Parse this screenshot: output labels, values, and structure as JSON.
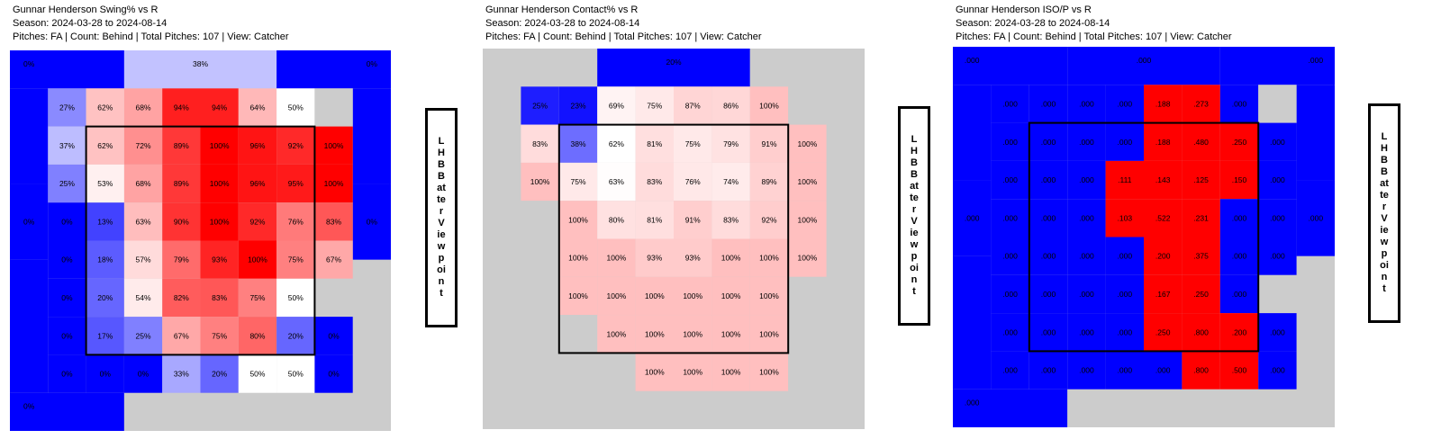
{
  "colors": {
    "low": "#0000ff",
    "mid": "#ffffff",
    "high": "#ff0000",
    "empty": "#cccccc",
    "zone": "#000000"
  },
  "viewpoint_label": "LHB Batter Viewpoint",
  "chart_data": [
    {
      "type": "heatmap",
      "metric": "Swing%",
      "title": "Gunnar Henderson Swing% vs R",
      "season": "Season: 2024-03-28 to 2024-08-14",
      "filters": "Pitches: FA | Count: Behind | Total Pitches: 107 | View: Catcher",
      "outer": {
        "top_left": "0%",
        "top_center": "38%",
        "top_right": "0%",
        "mid_left": "0%",
        "mid_right": "0%",
        "bottom_left": "0%",
        "bottom_center": null,
        "bottom_right": null
      },
      "rows": [
        [
          "27%",
          "62%",
          "68%",
          "94%",
          "94%",
          "64%",
          "50%",
          null
        ],
        [
          "37%",
          "62%",
          "72%",
          "89%",
          "100%",
          "96%",
          "92%",
          "100%"
        ],
        [
          "25%",
          "53%",
          "68%",
          "89%",
          "100%",
          "96%",
          "95%",
          "100%"
        ],
        [
          "0%",
          "13%",
          "63%",
          "90%",
          "100%",
          "92%",
          "76%",
          "83%"
        ],
        [
          "0%",
          "18%",
          "57%",
          "79%",
          "93%",
          "100%",
          "75%",
          "67%"
        ],
        [
          "0%",
          "20%",
          "54%",
          "82%",
          "83%",
          "75%",
          "50%",
          null
        ],
        [
          "0%",
          "17%",
          "25%",
          "67%",
          "75%",
          "80%",
          "20%",
          "0%"
        ],
        [
          "0%",
          "0%",
          "0%",
          "33%",
          "20%",
          "50%",
          "50%",
          "0%"
        ]
      ]
    },
    {
      "type": "heatmap",
      "metric": "Contact%",
      "title": "Gunnar Henderson Contact% vs R",
      "season": "Season: 2024-03-28 to 2024-08-14",
      "filters": "Pitches: FA | Count: Behind | Total Pitches: 107 | View: Catcher",
      "outer": {
        "top_left": null,
        "top_center": "20%",
        "top_right": null,
        "mid_left": null,
        "mid_right": null,
        "bottom_left": null,
        "bottom_center": null,
        "bottom_right": null
      },
      "rows": [
        [
          "25%",
          "23%",
          "69%",
          "75%",
          "87%",
          "86%",
          "100%",
          null
        ],
        [
          "83%",
          "38%",
          "62%",
          "81%",
          "75%",
          "79%",
          "91%",
          "100%"
        ],
        [
          "100%",
          "75%",
          "63%",
          "83%",
          "76%",
          "74%",
          "89%",
          "100%"
        ],
        [
          null,
          "100%",
          "80%",
          "81%",
          "91%",
          "83%",
          "92%",
          "100%"
        ],
        [
          null,
          "100%",
          "100%",
          "93%",
          "93%",
          "100%",
          "100%",
          "100%"
        ],
        [
          null,
          "100%",
          "100%",
          "100%",
          "100%",
          "100%",
          "100%",
          null
        ],
        [
          null,
          null,
          "100%",
          "100%",
          "100%",
          "100%",
          "100%",
          null
        ],
        [
          null,
          null,
          null,
          "100%",
          "100%",
          "100%",
          "100%",
          null
        ]
      ]
    },
    {
      "type": "heatmap",
      "metric": "ISO/P",
      "title": "Gunnar Henderson ISO/P vs R",
      "season": "Season: 2024-03-28 to 2024-08-14",
      "filters": "Pitches: FA | Count: Behind | Total Pitches: 107 | View: Catcher",
      "outer": {
        "top_left": ".000",
        "top_center": ".000",
        "top_right": ".000",
        "mid_left": ".000",
        "mid_right": ".000",
        "bottom_left": ".000",
        "bottom_center": null,
        "bottom_right": null
      },
      "rows": [
        [
          ".000",
          ".000",
          ".000",
          ".000",
          ".188",
          ".273",
          ".000",
          null
        ],
        [
          ".000",
          ".000",
          ".000",
          ".000",
          ".188",
          ".480",
          ".250",
          ".000"
        ],
        [
          ".000",
          ".000",
          ".000",
          ".111",
          ".143",
          ".125",
          ".150",
          ".000"
        ],
        [
          ".000",
          ".000",
          ".000",
          ".103",
          ".522",
          ".231",
          ".000",
          ".000"
        ],
        [
          ".000",
          ".000",
          ".000",
          ".000",
          ".200",
          ".375",
          ".000",
          ".000"
        ],
        [
          ".000",
          ".000",
          ".000",
          ".000",
          ".167",
          ".250",
          ".000",
          null
        ],
        [
          ".000",
          ".000",
          ".000",
          ".000",
          ".250",
          ".800",
          ".200",
          ".000"
        ],
        [
          ".000",
          ".000",
          ".000",
          ".000",
          ".000",
          ".800",
          ".500",
          ".000"
        ]
      ]
    }
  ]
}
